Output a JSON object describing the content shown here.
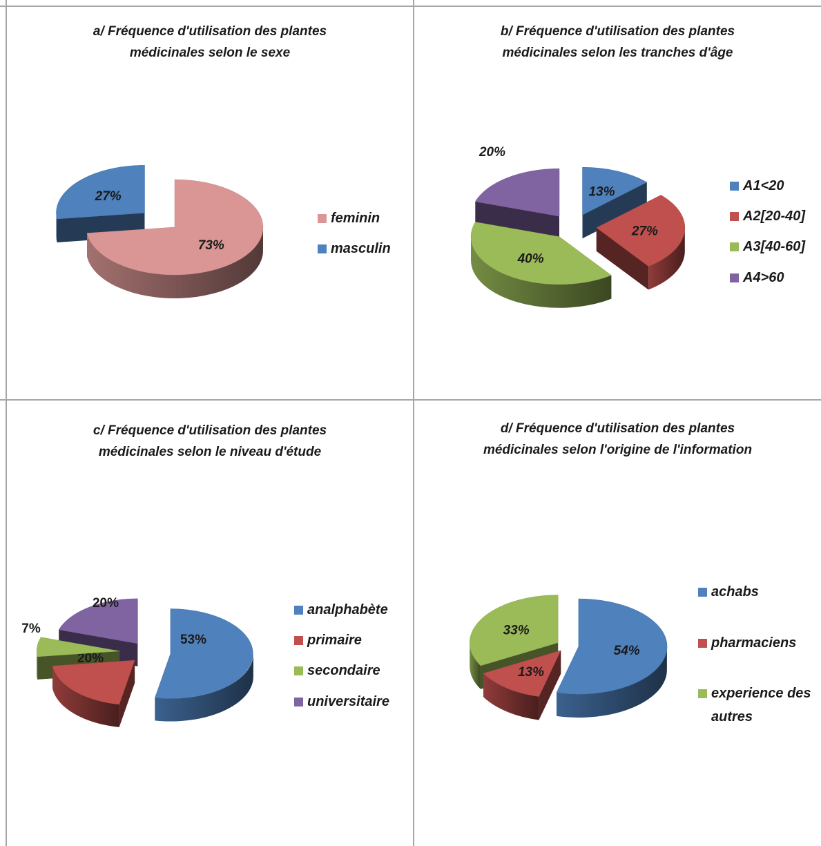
{
  "chart_data": [
    {
      "type": "pie",
      "title_lines": [
        "a/ Fréquence d'utilisation des plantes",
        "médicinales selon le sexe"
      ],
      "categories": [
        "feminin",
        "masculin"
      ],
      "values": [
        73,
        27
      ],
      "labels": [
        "73%",
        "27%"
      ],
      "colors": [
        "#d99694",
        "#4f81bd"
      ],
      "legend_position": "right",
      "label_style": "italic"
    },
    {
      "type": "pie",
      "title_lines": [
        "b/ Fréquence d'utilisation des plantes",
        "médicinales selon les tranches d'âge"
      ],
      "categories": [
        "A1<20",
        "A2[20-40]",
        "A3[40-60]",
        "A4>60"
      ],
      "values": [
        13,
        27,
        40,
        20
      ],
      "labels": [
        "13%",
        "27%",
        "40%",
        "20%"
      ],
      "colors": [
        "#4f81bd",
        "#c0504d",
        "#9bbb59",
        "#8064a2"
      ],
      "legend_position": "right",
      "label_style": "italic"
    },
    {
      "type": "pie",
      "title_lines": [
        "c/ Fréquence  d'utilisation des plantes",
        "médicinales  selon le niveau d'étude"
      ],
      "categories": [
        "analphabète",
        "primaire",
        "secondaire",
        "universitaire"
      ],
      "values": [
        53,
        20,
        7,
        20
      ],
      "labels": [
        "53%",
        "20%",
        "7%",
        "20%"
      ],
      "colors": [
        "#4f81bd",
        "#c0504d",
        "#9bbb59",
        "#8064a2"
      ],
      "legend_position": "right",
      "label_style": "normal"
    },
    {
      "type": "pie",
      "title_lines": [
        "d/ Fréquence d'utilisation des plantes",
        "médicinales selon l'origine de l'information"
      ],
      "categories": [
        "achabs",
        "pharmaciens",
        "experience des autres"
      ],
      "values": [
        54,
        13,
        33
      ],
      "labels": [
        "54%",
        "13%",
        "33%"
      ],
      "colors": [
        "#4f81bd",
        "#c0504d",
        "#9bbb59"
      ],
      "legend_position": "right",
      "label_style": "italic"
    }
  ]
}
